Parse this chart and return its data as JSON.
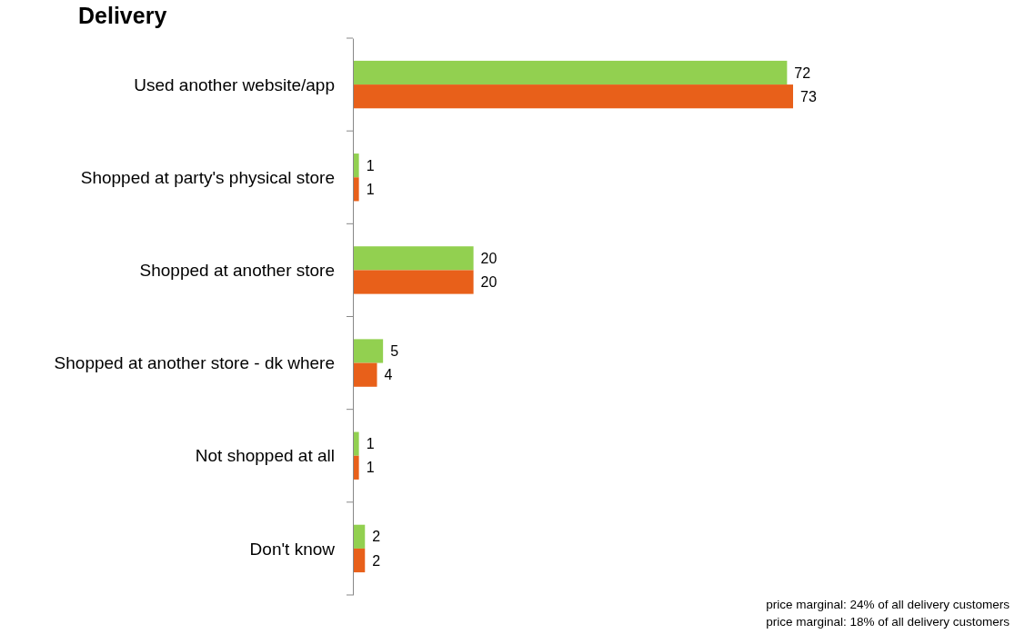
{
  "chart_data": {
    "type": "bar",
    "orientation": "horizontal",
    "title": "Delivery",
    "categories": [
      "Used another website/app",
      "Shopped at party's physical store",
      "Shopped at another store",
      "Shopped at another store - dk where",
      "Not shopped at all",
      "Don't know"
    ],
    "series": [
      {
        "color": "#92d050",
        "values": [
          72,
          1,
          20,
          5,
          1,
          2
        ]
      },
      {
        "color": "#e8601a",
        "values": [
          73,
          1,
          20,
          4,
          1,
          2
        ]
      }
    ],
    "data_labels": true,
    "grid": false,
    "legend": false,
    "annotations": [
      "price marginal: 24% of all delivery customers",
      "price marginal: 18% of all delivery customers"
    ]
  }
}
